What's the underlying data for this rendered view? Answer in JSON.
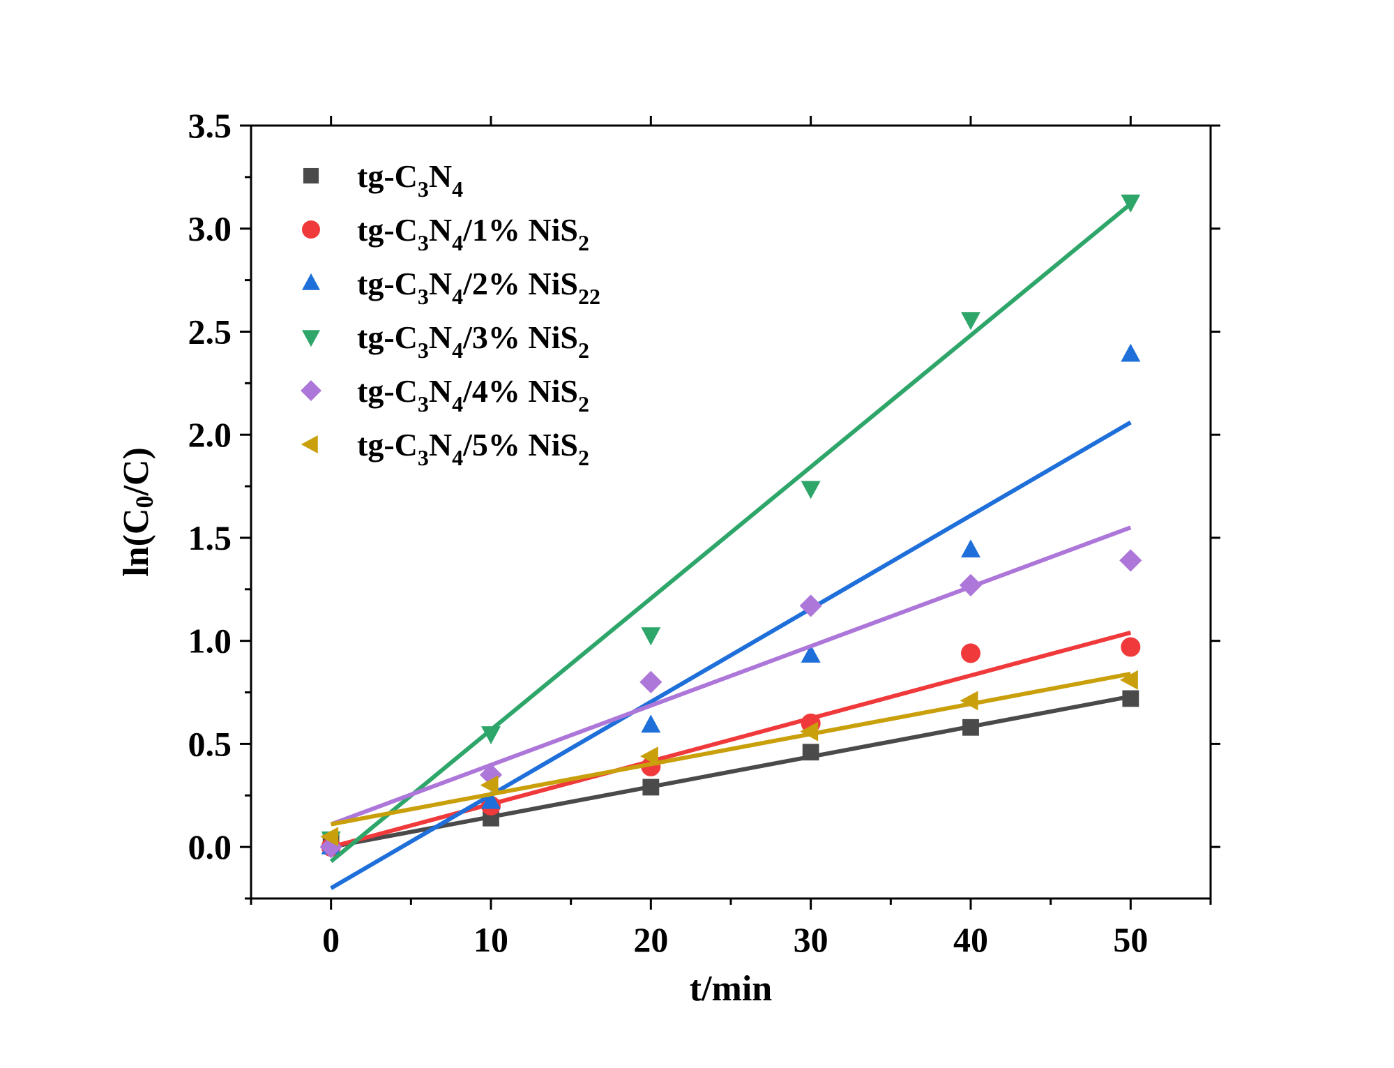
{
  "chart_data": {
    "type": "scatter",
    "xlabel": "t/min",
    "ylabel": {
      "base": "ln(C",
      "sub": "0",
      "tail": "/C)"
    },
    "xlim": [
      -5,
      55
    ],
    "ylim": [
      -0.25,
      3.5
    ],
    "xticks": [
      0,
      10,
      20,
      30,
      40,
      50
    ],
    "yticks": [
      0.0,
      0.5,
      1.0,
      1.5,
      2.0,
      2.5,
      3.0,
      3.5
    ],
    "ytick_labels": [
      "0.0",
      "0.5",
      "1.0",
      "1.5",
      "2.0",
      "2.5",
      "3.0",
      "3.5"
    ],
    "legend_position": "top-left",
    "grid": false,
    "x": [
      0,
      10,
      20,
      30,
      40,
      50
    ],
    "series": [
      {
        "name": "tg-C3N4",
        "legend_parts": [
          [
            "tg-C",
            ""
          ],
          [
            "3",
            "sub"
          ],
          [
            "N",
            ""
          ],
          [
            "4",
            "sub"
          ]
        ],
        "color": "#4a4a4a",
        "marker": "square",
        "values": [
          0.03,
          0.14,
          0.29,
          0.46,
          0.58,
          0.72
        ],
        "fit": [
          0.0,
          0.73
        ]
      },
      {
        "name": "tg-C3N4/1% NiS2",
        "legend_parts": [
          [
            "tg-C",
            ""
          ],
          [
            "3",
            "sub"
          ],
          [
            "N",
            ""
          ],
          [
            "4",
            "sub"
          ],
          [
            "/1% NiS",
            ""
          ],
          [
            "2",
            "sub"
          ]
        ],
        "color": "#f0393b",
        "marker": "circle",
        "values": [
          0.0,
          0.2,
          0.39,
          0.6,
          0.94,
          0.97
        ],
        "fit": [
          0.0,
          1.04
        ]
      },
      {
        "name": "tg-C3N4/2% NiS22",
        "legend_parts": [
          [
            "tg-C",
            ""
          ],
          [
            "3",
            "sub"
          ],
          [
            "N",
            ""
          ],
          [
            "4",
            "sub"
          ],
          [
            "/2% NiS",
            ""
          ],
          [
            "22",
            "sub"
          ]
        ],
        "color": "#1e6fd9",
        "marker": "triangle-up",
        "values": [
          0.0,
          0.22,
          0.59,
          0.93,
          1.44,
          2.39
        ],
        "fit": [
          -0.2,
          2.06
        ]
      },
      {
        "name": "tg-C3N4/3% NiS2",
        "legend_parts": [
          [
            "tg-C",
            ""
          ],
          [
            "3",
            "sub"
          ],
          [
            "N",
            ""
          ],
          [
            "4",
            "sub"
          ],
          [
            "/3% NiS",
            ""
          ],
          [
            "2",
            "sub"
          ]
        ],
        "color": "#2ea66a",
        "marker": "triangle-down",
        "values": [
          0.04,
          0.55,
          1.03,
          1.74,
          2.56,
          3.13
        ],
        "fit": [
          -0.07,
          3.12
        ]
      },
      {
        "name": "tg-C3N4/4% NiS2",
        "legend_parts": [
          [
            "tg-C",
            ""
          ],
          [
            "3",
            "sub"
          ],
          [
            "N",
            ""
          ],
          [
            "4",
            "sub"
          ],
          [
            "/4% NiS",
            ""
          ],
          [
            "2",
            "sub"
          ]
        ],
        "color": "#ad76d9",
        "marker": "diamond",
        "values": [
          0.0,
          0.35,
          0.8,
          1.17,
          1.27,
          1.39
        ],
        "fit": [
          0.11,
          1.55
        ]
      },
      {
        "name": "tg-C3N4/5% NiS2",
        "legend_parts": [
          [
            "tg-C",
            ""
          ],
          [
            "3",
            "sub"
          ],
          [
            "N",
            ""
          ],
          [
            "4",
            "sub"
          ],
          [
            "/5% NiS",
            ""
          ],
          [
            "2",
            "sub"
          ]
        ],
        "color": "#c9a00c",
        "marker": "triangle-left",
        "values": [
          0.05,
          0.3,
          0.44,
          0.56,
          0.71,
          0.81
        ],
        "fit": [
          0.11,
          0.84
        ]
      }
    ]
  }
}
